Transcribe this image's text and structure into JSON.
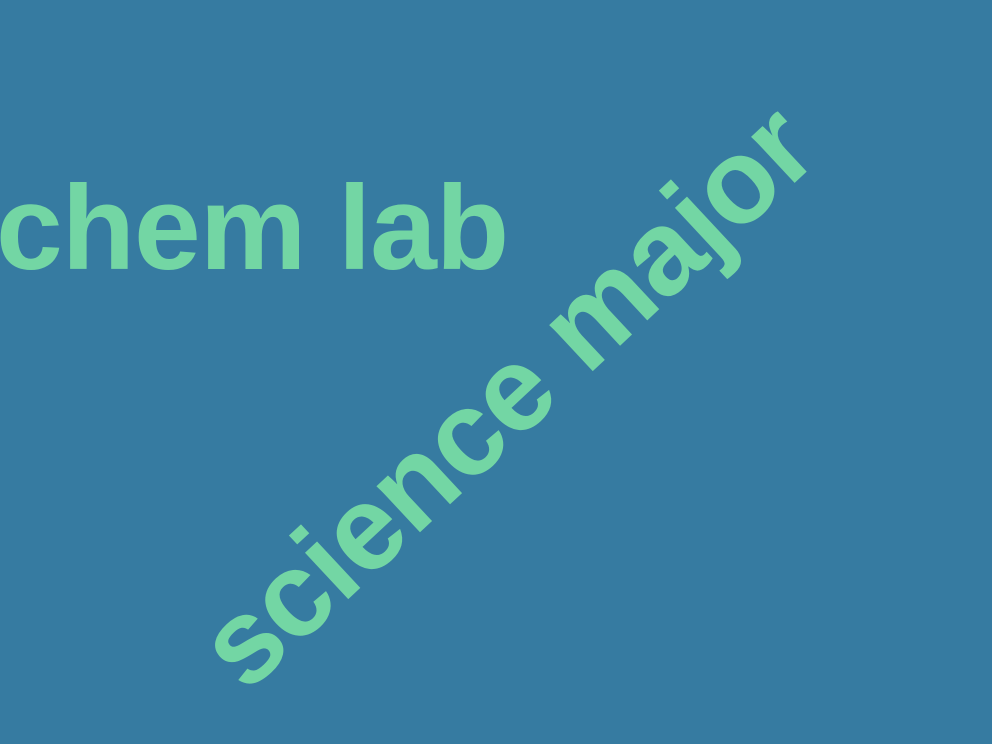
{
  "texts": {
    "horizontal": "chem lab",
    "diagonal": "science major"
  },
  "colors": {
    "background": "#367ba1",
    "text": "#73d6a4"
  }
}
